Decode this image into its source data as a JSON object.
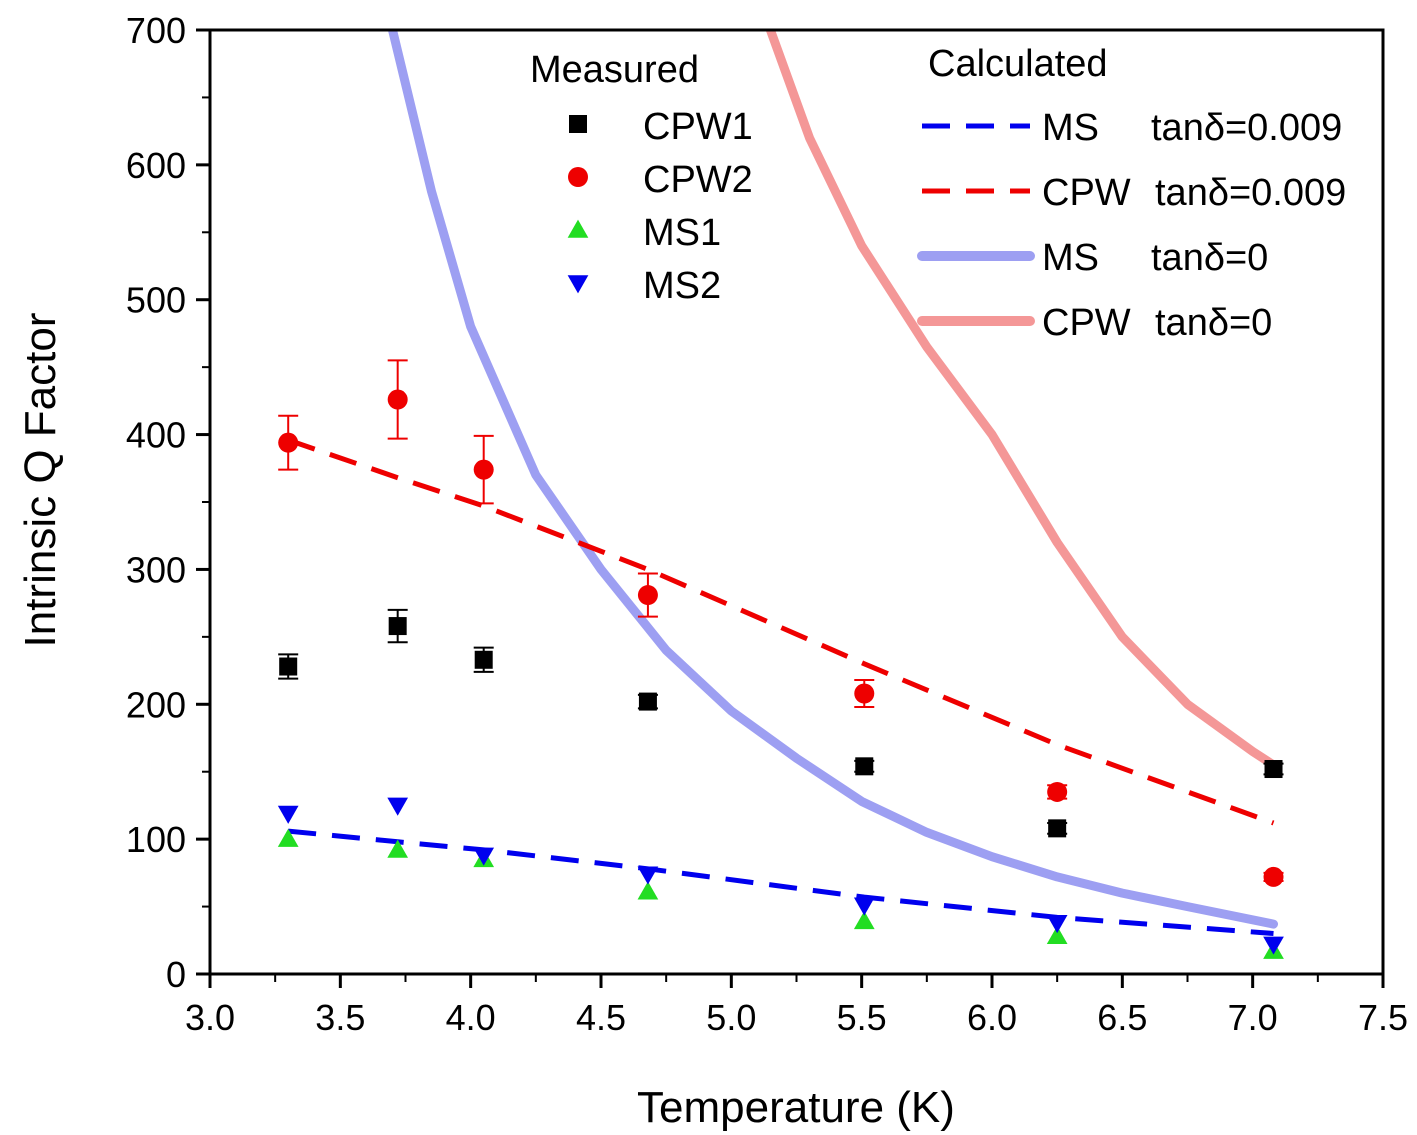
{
  "chart_data": {
    "type": "scatter",
    "xlabel": "Temperature (K)",
    "ylabel": "Intrinsic Q Factor",
    "xlim": [
      3.0,
      7.5
    ],
    "ylim": [
      0,
      700
    ],
    "xticks": [
      "3.0",
      "3.5",
      "4.0",
      "4.5",
      "5.0",
      "5.5",
      "6.0",
      "6.5",
      "7.0",
      "7.5"
    ],
    "yticks": [
      "0",
      "100",
      "200",
      "300",
      "400",
      "500",
      "600",
      "700"
    ],
    "legend_measured_title": "Measured",
    "legend_calculated_title": "Calculated",
    "measured_series": [
      {
        "name": "CPW1",
        "color": "#000000",
        "marker": "square",
        "x": [
          3.3,
          3.72,
          4.05,
          4.68,
          5.51,
          6.25,
          7.08
        ],
        "y": [
          228,
          258,
          233,
          202,
          154,
          108,
          152
        ],
        "err": [
          9,
          12,
          9,
          5,
          4,
          4,
          4
        ]
      },
      {
        "name": "CPW2",
        "color": "#ee0000",
        "marker": "circle",
        "x": [
          3.3,
          3.72,
          4.05,
          4.68,
          5.51,
          6.25,
          7.08
        ],
        "y": [
          394,
          426,
          374,
          281,
          208,
          135,
          72
        ],
        "err": [
          20,
          29,
          25,
          16,
          10,
          5,
          3
        ]
      },
      {
        "name": "MS1",
        "color": "#22dd22",
        "marker": "triangle-up",
        "x": [
          3.3,
          3.72,
          4.05,
          4.68,
          5.51,
          6.25,
          7.08
        ],
        "y": [
          100,
          92,
          85,
          61,
          39,
          28,
          17
        ],
        "err": [
          0,
          0,
          0,
          0,
          0,
          0,
          0
        ]
      },
      {
        "name": "MS2",
        "color": "#0000ee",
        "marker": "triangle-down",
        "x": [
          3.3,
          3.72,
          4.05,
          4.68,
          5.51,
          6.25,
          7.08
        ],
        "y": [
          119,
          125,
          88,
          74,
          51,
          38,
          22
        ],
        "err": [
          0,
          0,
          0,
          0,
          0,
          0,
          0
        ]
      }
    ],
    "calculated_series": [
      {
        "name": "MS",
        "tan_label": "tanδ=0.009",
        "color": "#0000ee",
        "style": "dashed",
        "x": [
          3.3,
          3.72,
          4.05,
          4.68,
          5.51,
          6.25,
          7.08
        ],
        "y": [
          106,
          98,
          92,
          78,
          57,
          42,
          30
        ]
      },
      {
        "name": "CPW",
        "tan_label": "tanδ=0.009",
        "color": "#ee0000",
        "style": "dashed",
        "x": [
          3.3,
          3.72,
          4.05,
          4.68,
          5.51,
          6.25,
          7.08
        ],
        "y": [
          396,
          368,
          347,
          300,
          230,
          170,
          112
        ]
      },
      {
        "name": "MS",
        "tan_label": "tanδ=0",
        "color": "#9d9ff2",
        "style": "solid",
        "x": [
          3.7,
          3.85,
          4.0,
          4.25,
          4.5,
          4.75,
          5.0,
          5.25,
          5.5,
          5.75,
          6.0,
          6.25,
          6.5,
          6.75,
          7.08
        ],
        "y": [
          700,
          580,
          480,
          370,
          300,
          240,
          195,
          160,
          128,
          105,
          87,
          72,
          60,
          50,
          37
        ]
      },
      {
        "name": "CPW",
        "tan_label": "tanδ=0",
        "color": "#f49797",
        "style": "solid",
        "x": [
          5.15,
          5.3,
          5.5,
          5.75,
          6.0,
          6.25,
          6.5,
          6.75,
          7.0,
          7.08
        ],
        "y": [
          700,
          620,
          540,
          465,
          400,
          320,
          250,
          200,
          165,
          155
        ]
      }
    ]
  }
}
